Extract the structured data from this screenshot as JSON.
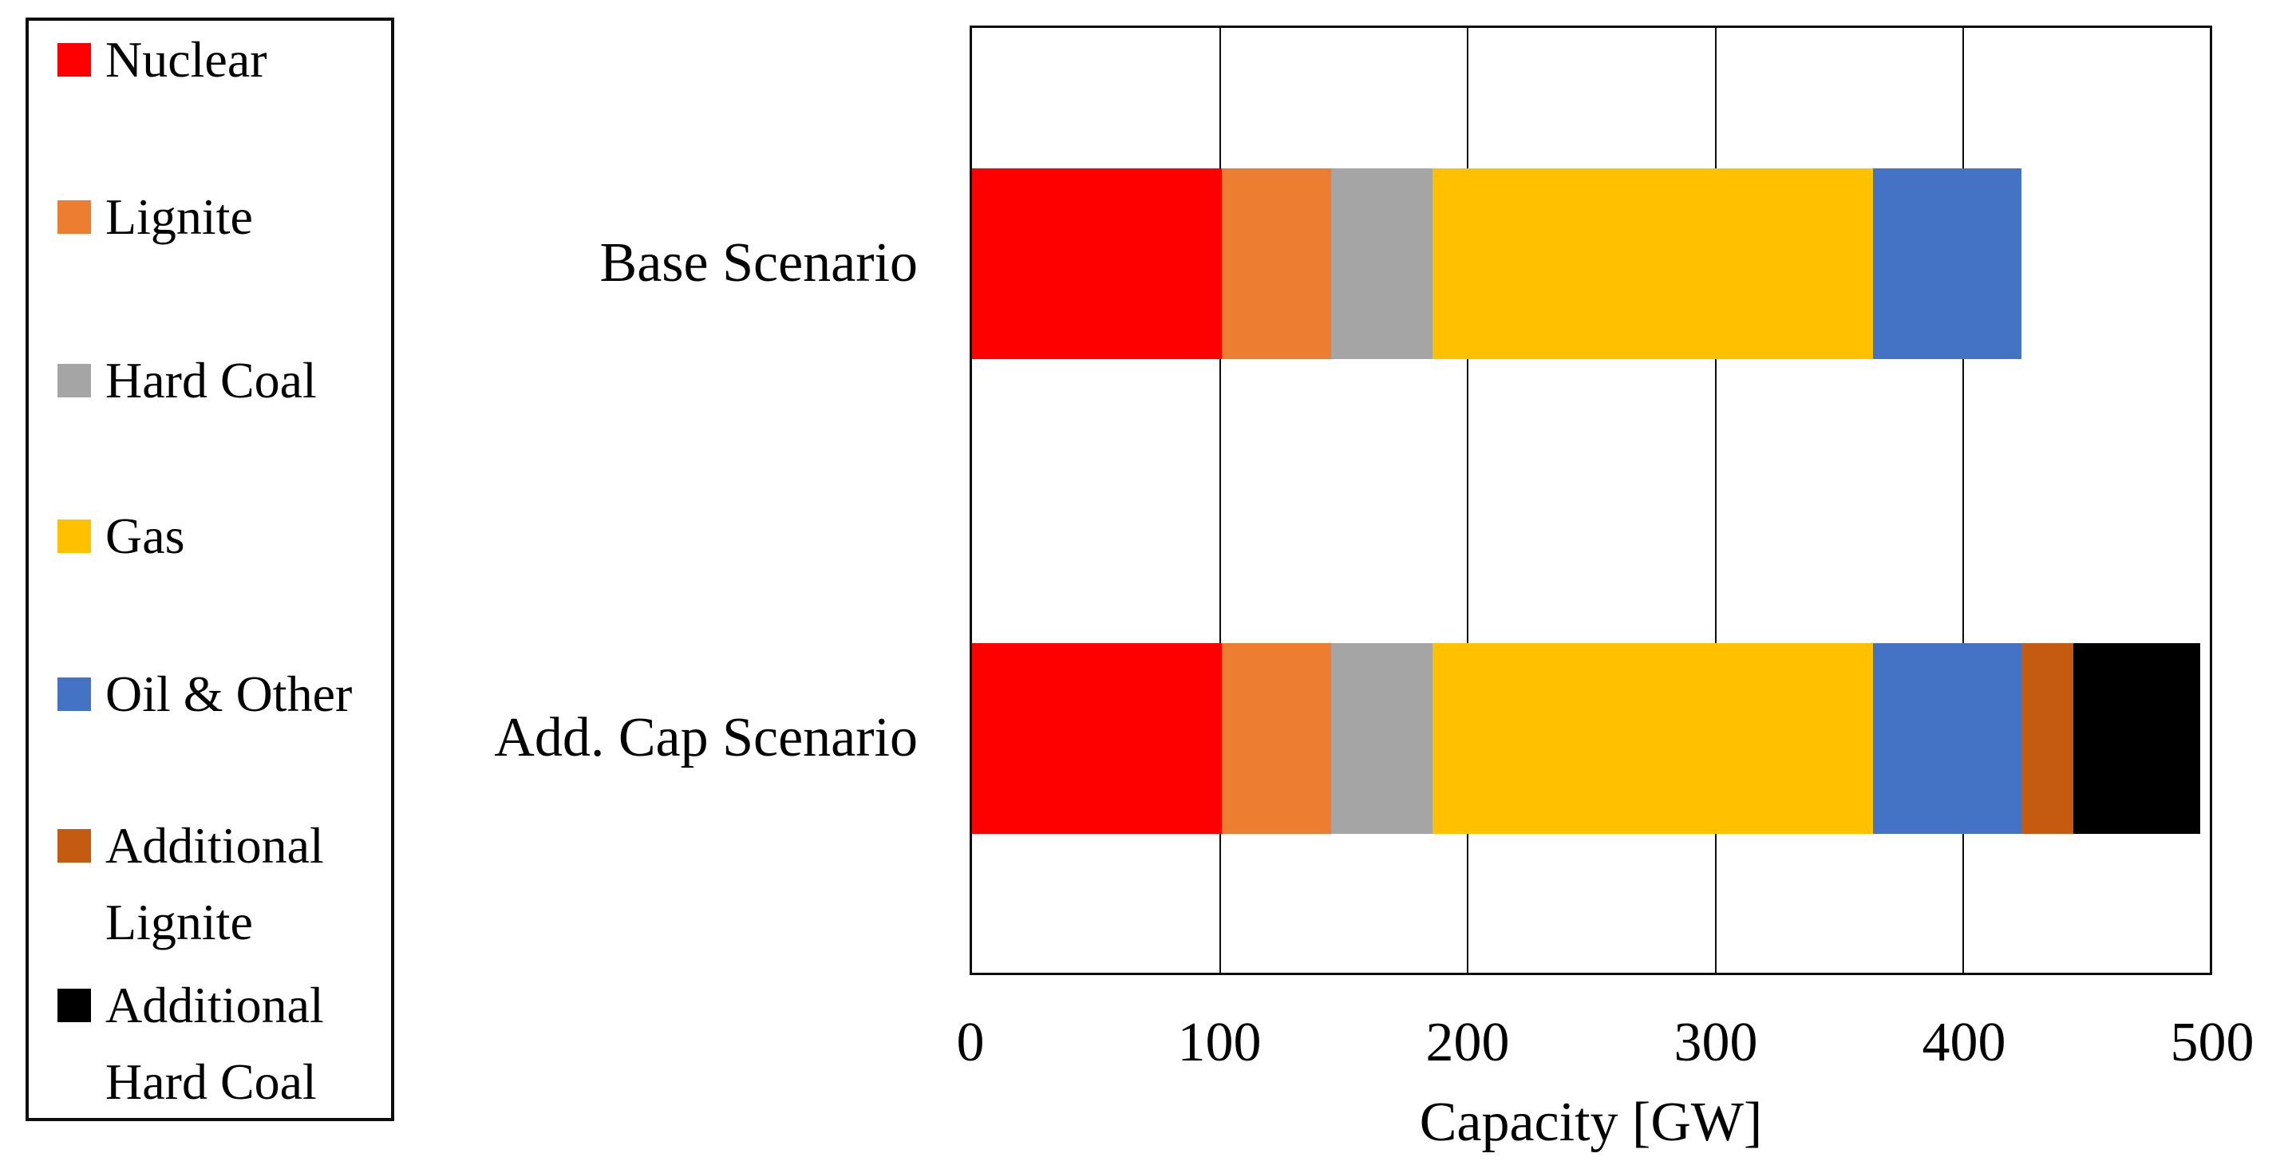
{
  "chart_data": {
    "type": "bar",
    "orientation": "horizontal",
    "stacked": true,
    "title": "",
    "categories": [
      "Base Scenario",
      "Add. Cap Scenario"
    ],
    "series": [
      {
        "name": "Nuclear",
        "color": "#FF0000",
        "values": [
          101,
          101
        ]
      },
      {
        "name": "Lignite",
        "color": "#ED7D31",
        "values": [
          44,
          44
        ]
      },
      {
        "name": "Hard Coal",
        "color": "#A5A5A5",
        "values": [
          41,
          41
        ]
      },
      {
        "name": "Gas",
        "color": "#FFC000",
        "values": [
          178,
          178
        ]
      },
      {
        "name": "Oil & Other",
        "color": "#4472C4",
        "values": [
          60,
          60
        ]
      },
      {
        "name": "Additional Lignite",
        "color": "#C55A11",
        "values": [
          0,
          21
        ]
      },
      {
        "name": "Additional Hard Coal",
        "color": "#000000",
        "values": [
          0,
          51
        ]
      }
    ],
    "totals": [
      424,
      496
    ],
    "xlabel": "Capacity [GW]",
    "xlim": [
      0,
      500
    ],
    "xticks": [
      "0",
      "100",
      "200",
      "300",
      "400",
      "500"
    ],
    "grid": "vertical-major",
    "legend_position": "left",
    "plot_border_color": "#0d0d0d",
    "background_color": "#ffffff"
  }
}
